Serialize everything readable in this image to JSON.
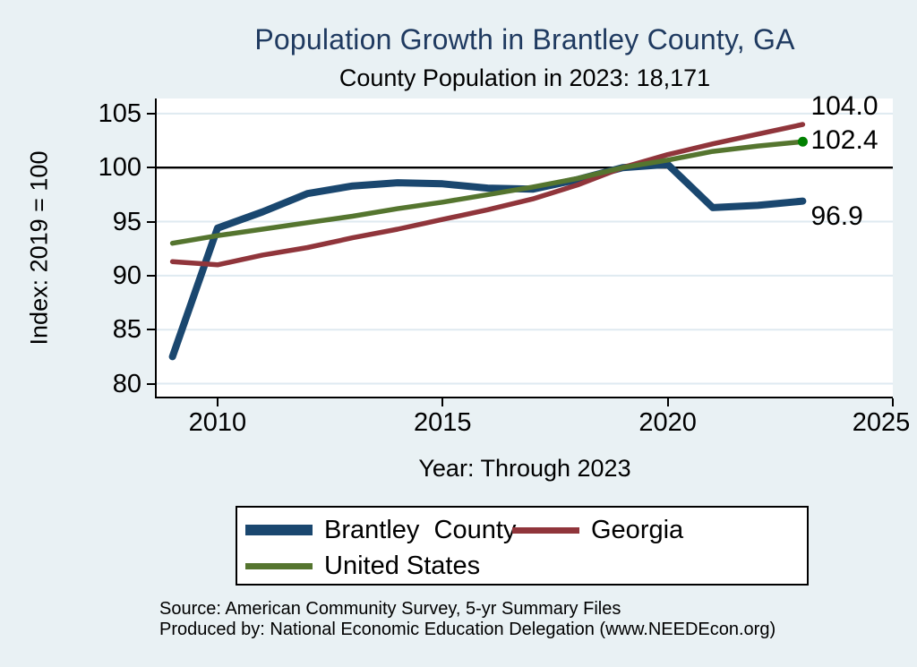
{
  "colors": {
    "background": "#e9f1f4",
    "plot_background": "#ffffff",
    "gridline": "#dfeaf1",
    "axis": "#000000",
    "reference_line": "#000000",
    "title": "#1f3a60"
  },
  "chart_data": {
    "type": "line",
    "title": "Population Growth in Brantley County, GA",
    "subtitle": "County Population in 2023: 18,171",
    "xlabel": "Year: Through 2023",
    "ylabel": "Index: 2019 = 100",
    "grid": true,
    "legend_position": "bottom",
    "xlim": [
      2008.65,
      2025
    ],
    "ylim": [
      78.8,
      106.4
    ],
    "x_ticks": [
      2010,
      2015,
      2020,
      2025
    ],
    "y_ticks": [
      105,
      100,
      95,
      90,
      85,
      80
    ],
    "reference_line_y": 100,
    "x": [
      2009,
      2010,
      2011,
      2012,
      2013,
      2014,
      2015,
      2016,
      2017,
      2018,
      2019,
      2020,
      2021,
      2022,
      2023
    ],
    "series": [
      {
        "name": "Brantley  County",
        "color": "#1a476f",
        "end_label": "96.9",
        "values": [
          82.5,
          94.4,
          95.9,
          97.6,
          98.3,
          98.6,
          98.5,
          98.1,
          98.0,
          98.9,
          100.0,
          100.3,
          96.3,
          96.5,
          96.9
        ]
      },
      {
        "name": "Georgia",
        "color": "#90353b",
        "end_label": "104.0",
        "values": [
          91.3,
          91.0,
          91.9,
          92.6,
          93.5,
          94.3,
          95.2,
          96.1,
          97.1,
          98.4,
          100.0,
          101.2,
          102.2,
          103.1,
          104.0
        ]
      },
      {
        "name": "United States",
        "color": "#55752f",
        "end_label": "102.4",
        "end_marker": true,
        "end_marker_color": "#008000",
        "values": [
          93.0,
          93.7,
          94.3,
          94.9,
          95.5,
          96.2,
          96.8,
          97.5,
          98.2,
          99.0,
          100.0,
          100.7,
          101.5,
          102.0,
          102.4
        ]
      }
    ]
  },
  "source": {
    "line1": "Source: American Community Survey, 5-yr Summary Files",
    "line2": "Produced by: National Economic Education Delegation (www.NEEDEcon.org)"
  }
}
